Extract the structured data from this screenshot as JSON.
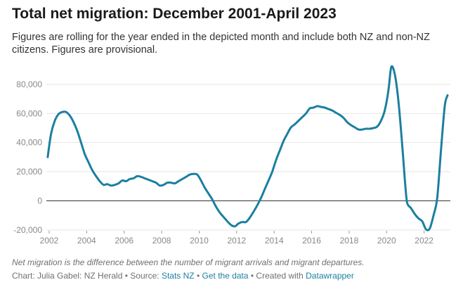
{
  "header": {
    "title": "Total net migration: December 2001-April 2023",
    "subtitle": "Figures are rolling for the year ended in the depicted month and include both NZ and non-NZ citizens. Figures are provisional."
  },
  "footer": {
    "notes": "Net migration is the difference between the number of migrant arrivals and migrant departures.",
    "byline_prefix": "Chart: Julia Gabel: NZ Herald • Source: ",
    "source_link": "Stats NZ",
    "separator": " • ",
    "data_link": "Get the data",
    "created_with": " • Created with ",
    "tool_link": "Datawrapper"
  },
  "colors": {
    "line": "#1b7fa0",
    "grid": "#e6e6e6",
    "zero_line": "#333333",
    "tick_text": "#888888",
    "link": "#1d81a2"
  },
  "chart_data": {
    "type": "line",
    "title": "Total net migration: December 2001-April 2023",
    "xlabel": "",
    "ylabel": "",
    "xlim": [
      2001.85,
      2023.4
    ],
    "ylim": [
      -20000,
      92000
    ],
    "x_ticks": [
      2002,
      2004,
      2006,
      2008,
      2010,
      2012,
      2014,
      2016,
      2018,
      2020,
      2022
    ],
    "x_tick_labels": [
      "2002",
      "2004",
      "2006",
      "2008",
      "2010",
      "2012",
      "2014",
      "2016",
      "2018",
      "2020",
      "2022"
    ],
    "y_ticks": [
      -20000,
      0,
      20000,
      40000,
      60000,
      80000
    ],
    "y_tick_labels": [
      "-20,000",
      "0",
      "20,000",
      "40,000",
      "60,000",
      "80,000"
    ],
    "grid": true,
    "legend": "none",
    "series": [
      {
        "x": [
          2001.92,
          2002.1,
          2002.3,
          2002.5,
          2002.7,
          2002.9,
          2003.1,
          2003.3,
          2003.5,
          2003.7,
          2003.9,
          2004.1,
          2004.3,
          2004.5,
          2004.7,
          2004.9,
          2005.1,
          2005.3,
          2005.5,
          2005.7,
          2005.9,
          2006.1,
          2006.3,
          2006.5,
          2006.7,
          2006.9,
          2007.1,
          2007.3,
          2007.5,
          2007.7,
          2007.9,
          2008.1,
          2008.3,
          2008.5,
          2008.7,
          2008.9,
          2009.1,
          2009.3,
          2009.5,
          2009.7,
          2009.9,
          2010.1,
          2010.3,
          2010.5,
          2010.7,
          2010.9,
          2011.1,
          2011.3,
          2011.5,
          2011.7,
          2011.9,
          2012.1,
          2012.3,
          2012.5,
          2012.7,
          2012.9,
          2013.1,
          2013.3,
          2013.5,
          2013.7,
          2013.9,
          2014.1,
          2014.3,
          2014.5,
          2014.7,
          2014.9,
          2015.1,
          2015.3,
          2015.5,
          2015.7,
          2015.9,
          2016.1,
          2016.3,
          2016.5,
          2016.7,
          2016.9,
          2017.1,
          2017.3,
          2017.5,
          2017.7,
          2017.9,
          2018.1,
          2018.3,
          2018.5,
          2018.7,
          2018.9,
          2019.1,
          2019.3,
          2019.5,
          2019.7,
          2019.9,
          2020.1,
          2020.25,
          2020.45,
          2020.65,
          2020.85,
          2021.0,
          2021.1,
          2021.3,
          2021.5,
          2021.7,
          2021.9,
          2022.1,
          2022.3,
          2022.5,
          2022.7,
          2022.9,
          2023.1,
          2023.25
        ],
        "y": [
          30000,
          46000,
          55000,
          59500,
          61000,
          61000,
          58500,
          54000,
          48000,
          40000,
          32000,
          26500,
          21000,
          17000,
          13500,
          11000,
          11500,
          10500,
          11000,
          12000,
          14000,
          13500,
          15000,
          15500,
          17000,
          16500,
          15500,
          14500,
          13500,
          12500,
          10500,
          11000,
          12500,
          12500,
          12000,
          13500,
          15000,
          16500,
          18000,
          18500,
          18000,
          14000,
          9000,
          5000,
          1000,
          -4000,
          -8000,
          -11000,
          -14000,
          -16500,
          -17500,
          -15500,
          -14500,
          -14500,
          -11500,
          -7500,
          -3000,
          2000,
          8000,
          14000,
          20000,
          28000,
          34500,
          41000,
          46000,
          50500,
          52500,
          55000,
          57500,
          60000,
          63500,
          64000,
          65000,
          64500,
          64000,
          63000,
          62000,
          60500,
          59000,
          57000,
          54000,
          52000,
          50500,
          49000,
          49000,
          49500,
          49500,
          50000,
          51000,
          55000,
          62000,
          76000,
          92000,
          86000,
          66000,
          35000,
          10000,
          -1500,
          -5000,
          -9000,
          -12000,
          -14000,
          -19500,
          -19000,
          -10000,
          2000,
          35000,
          65000,
          72500
        ]
      }
    ]
  }
}
